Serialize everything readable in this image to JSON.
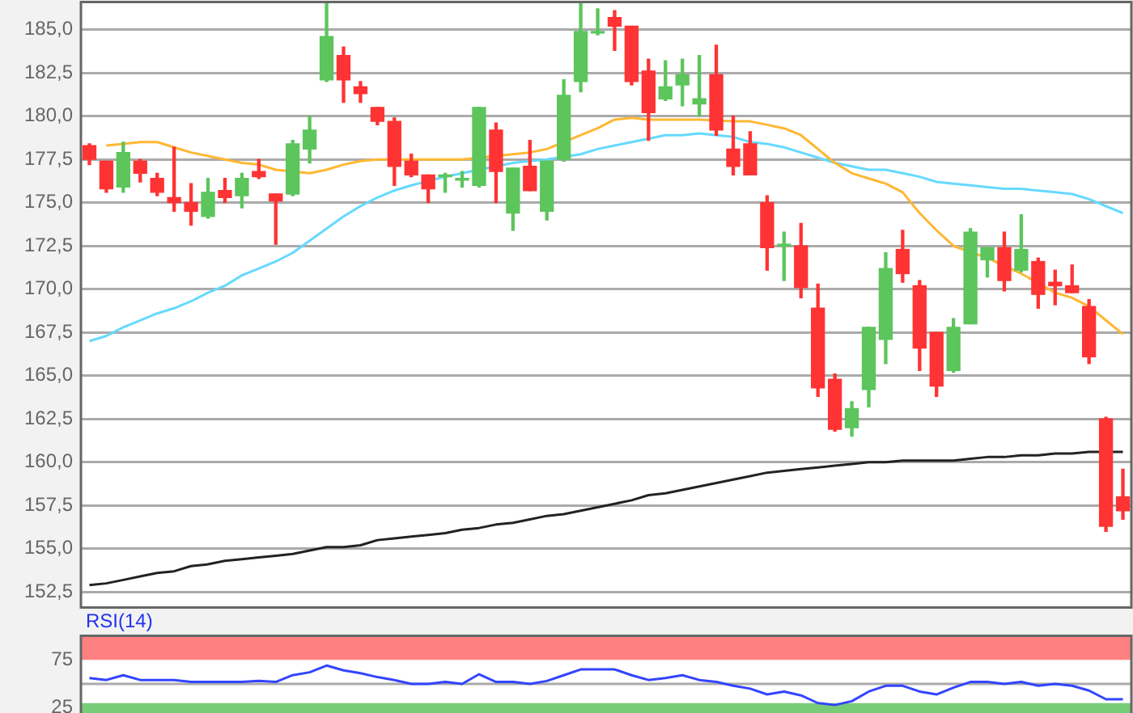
{
  "chart_data": [
    {
      "type": "candlestick",
      "categories": [
        null,
        null,
        null,
        null,
        null,
        null,
        null,
        null,
        null,
        null,
        null,
        null,
        null,
        null,
        null,
        null,
        null,
        null,
        null,
        null,
        null,
        null,
        null,
        null,
        null,
        null,
        null,
        null,
        null,
        null,
        null,
        null,
        null,
        null,
        null,
        null,
        null,
        null,
        null,
        null,
        null,
        null,
        null,
        null,
        null,
        null,
        null,
        null,
        null,
        null,
        null,
        null,
        null,
        null,
        null,
        null,
        null,
        null,
        null,
        null,
        null,
        null
      ],
      "ohlc": [
        [
          178.3,
          178.4,
          177.2,
          177.5
        ],
        [
          177.4,
          177.4,
          175.6,
          175.8
        ],
        [
          175.9,
          178.5,
          175.6,
          177.9
        ],
        [
          177.4,
          177.5,
          176.2,
          176.7
        ],
        [
          176.4,
          176.7,
          175.4,
          175.6
        ],
        [
          175.3,
          178.2,
          174.5,
          175.0
        ],
        [
          175.0,
          176.1,
          173.7,
          174.5
        ],
        [
          174.2,
          176.4,
          174.1,
          175.6
        ],
        [
          175.7,
          176.4,
          175.0,
          175.3
        ],
        [
          175.4,
          176.7,
          174.7,
          176.4
        ],
        [
          176.8,
          177.5,
          176.4,
          176.5
        ],
        [
          175.5,
          175.5,
          172.6,
          175.1
        ],
        [
          175.5,
          178.6,
          175.4,
          178.4
        ],
        [
          178.1,
          180.0,
          177.3,
          179.2
        ],
        [
          182.1,
          186.5,
          182.0,
          184.6
        ],
        [
          183.5,
          184.0,
          180.8,
          182.1
        ],
        [
          181.7,
          182.0,
          180.8,
          181.3
        ],
        [
          180.5,
          180.5,
          179.5,
          179.7
        ],
        [
          179.7,
          179.9,
          176.0,
          177.1
        ],
        [
          177.4,
          177.8,
          176.5,
          176.6
        ],
        [
          176.6,
          176.6,
          175.0,
          175.8
        ],
        [
          176.5,
          176.7,
          175.6,
          176.6
        ],
        [
          176.3,
          176.8,
          175.9,
          176.4
        ],
        [
          176.0,
          180.5,
          175.9,
          180.5
        ],
        [
          179.2,
          179.6,
          175.0,
          176.8
        ],
        [
          174.4,
          177.0,
          173.4,
          177.0
        ],
        [
          177.1,
          178.6,
          175.7,
          175.7
        ],
        [
          174.5,
          177.4,
          174.0,
          177.4
        ],
        [
          177.5,
          182.1,
          177.4,
          181.2
        ],
        [
          182.0,
          186.5,
          181.4,
          184.9
        ],
        [
          184.8,
          186.2,
          184.7,
          184.9
        ],
        [
          185.7,
          186.1,
          183.8,
          185.2
        ],
        [
          185.2,
          185.2,
          181.8,
          182.0
        ],
        [
          182.6,
          183.3,
          178.6,
          180.2
        ],
        [
          181.0,
          183.2,
          180.9,
          181.7
        ],
        [
          181.8,
          183.3,
          180.6,
          182.4
        ],
        [
          180.7,
          183.5,
          180.0,
          181.0
        ],
        [
          182.4,
          184.1,
          178.9,
          179.2
        ],
        [
          178.1,
          180.0,
          176.6,
          177.1
        ],
        [
          178.4,
          179.1,
          176.6,
          176.6
        ],
        [
          175.0,
          175.4,
          171.1,
          172.4
        ],
        [
          172.5,
          173.3,
          170.5,
          172.6
        ],
        [
          172.5,
          173.8,
          169.5,
          170.1
        ],
        [
          168.9,
          170.3,
          163.8,
          164.3
        ],
        [
          164.8,
          165.1,
          161.8,
          161.9
        ],
        [
          162.0,
          163.5,
          161.5,
          163.1
        ],
        [
          164.2,
          167.8,
          163.2,
          167.8
        ],
        [
          167.1,
          172.1,
          165.7,
          171.2
        ],
        [
          172.3,
          173.4,
          170.4,
          170.9
        ],
        [
          170.2,
          170.5,
          165.3,
          166.6
        ],
        [
          167.5,
          167.5,
          163.8,
          164.4
        ],
        [
          165.3,
          168.3,
          165.2,
          167.8
        ],
        [
          168.0,
          173.5,
          168.0,
          173.3
        ],
        [
          171.7,
          172.4,
          170.7,
          172.4
        ],
        [
          172.4,
          173.3,
          169.9,
          170.5
        ],
        [
          171.1,
          174.3,
          171.0,
          172.3
        ],
        [
          171.6,
          171.8,
          168.9,
          169.7
        ],
        [
          170.4,
          171.1,
          169.1,
          170.2
        ],
        [
          170.2,
          171.4,
          169.8,
          169.8
        ],
        [
          169.0,
          169.4,
          165.7,
          166.1
        ],
        [
          162.5,
          162.6,
          156.0,
          156.3
        ],
        [
          158.0,
          159.6,
          156.7,
          157.2
        ]
      ],
      "colors": [
        "#ff3333",
        "#ff3333",
        "#5cc55c",
        "#ff3333",
        "#ff3333",
        "#ff3333",
        "#ff3333",
        "#5cc55c",
        "#ff3333",
        "#5cc55c",
        "#ff3333",
        "#ff3333",
        "#5cc55c",
        "#5cc55c",
        "#5cc55c",
        "#ff3333",
        "#ff3333",
        "#ff3333",
        "#ff3333",
        "#ff3333",
        "#ff3333",
        "#5cc55c",
        "#5cc55c",
        "#5cc55c",
        "#ff3333",
        "#5cc55c",
        "#ff3333",
        "#5cc55c",
        "#5cc55c",
        "#5cc55c",
        "#5cc55c",
        "#ff3333",
        "#ff3333",
        "#ff3333",
        "#5cc55c",
        "#5cc55c",
        "#5cc55c",
        "#ff3333",
        "#ff3333",
        "#ff3333",
        "#ff3333",
        "#5cc55c",
        "#ff3333",
        "#ff3333",
        "#ff3333",
        "#5cc55c",
        "#5cc55c",
        "#5cc55c",
        "#ff3333",
        "#ff3333",
        "#ff3333",
        "#5cc55c",
        "#5cc55c",
        "#5cc55c",
        "#ff3333",
        "#5cc55c",
        "#ff3333",
        "#ff3333",
        "#ff3333",
        "#ff3333",
        "#ff3333",
        "#ff3333"
      ],
      "series": [
        {
          "type": "line",
          "color": "#ffb733",
          "values": [
            null,
            178.3,
            178.4,
            178.5,
            178.5,
            178.2,
            177.9,
            177.7,
            177.5,
            177.3,
            177.2,
            176.9,
            null,
            176.7,
            176.9,
            177.2,
            177.4,
            177.5,
            null,
            177.5,
            177.5,
            177.5,
            177.5,
            null,
            null,
            177.8,
            177.9,
            178.1,
            null,
            178.9,
            179.3,
            179.8,
            179.9,
            179.8,
            179.8,
            179.8,
            179.8,
            null,
            179.7,
            179.7,
            179.5,
            179.3,
            178.9,
            178.1,
            177.3,
            176.7,
            176.4,
            176.1,
            175.6,
            174.4,
            173.4,
            172.5,
            null,
            171.8,
            null,
            170.9,
            null,
            169.8,
            169.5,
            169.0,
            168.2,
            167.4
          ]
        },
        {
          "type": "line",
          "color": "#66d9ff",
          "values": [
            167.0,
            167.3,
            167.8,
            168.2,
            168.6,
            168.9,
            169.3,
            169.8,
            170.2,
            170.8,
            171.2,
            171.6,
            172.1,
            172.8,
            173.5,
            174.2,
            174.8,
            175.3,
            175.7,
            176.0,
            null,
            176.5,
            176.7,
            null,
            null,
            177.3,
            177.4,
            177.5,
            null,
            177.8,
            178.1,
            178.3,
            178.5,
            178.7,
            178.9,
            178.9,
            179.0,
            178.9,
            178.8,
            178.5,
            178.4,
            178.2,
            177.9,
            177.6,
            177.3,
            177.1,
            176.9,
            176.9,
            176.7,
            176.5,
            176.2,
            176.1,
            176.0,
            175.9,
            175.8,
            175.8,
            175.7,
            175.6,
            175.5,
            175.2,
            174.8,
            174.4
          ]
        },
        {
          "type": "line",
          "color": "#222222",
          "values": [
            152.9,
            153.0,
            153.2,
            153.4,
            153.6,
            153.7,
            154.0,
            154.1,
            154.3,
            154.4,
            154.5,
            154.6,
            154.7,
            154.9,
            155.1,
            155.1,
            155.2,
            155.5,
            155.6,
            155.7,
            155.8,
            155.9,
            156.1,
            156.2,
            156.4,
            156.5,
            156.7,
            156.9,
            157.0,
            157.2,
            157.4,
            157.6,
            157.8,
            158.1,
            158.2,
            158.4,
            158.6,
            158.8,
            159.0,
            159.2,
            159.4,
            159.5,
            159.6,
            159.7,
            159.8,
            159.9,
            160.0,
            160.0,
            160.1,
            160.1,
            160.1,
            160.1,
            160.2,
            160.3,
            160.3,
            160.4,
            160.4,
            160.5,
            160.5,
            160.6,
            null,
            160.6
          ]
        }
      ],
      "ylim": [
        151.6,
        186.6
      ],
      "yticks": [
        {
          "value": 152.5,
          "label": "152,5"
        },
        {
          "value": 155,
          "label": "155,0"
        },
        {
          "value": 157.5,
          "label": "157,5"
        },
        {
          "value": 160,
          "label": "160,0"
        },
        {
          "value": 162.5,
          "label": "162,5"
        },
        {
          "value": 165,
          "label": "165,0"
        },
        {
          "value": 167.5,
          "label": "167,5"
        },
        {
          "value": 170,
          "label": "170,0"
        },
        {
          "value": 172.5,
          "label": "172,5"
        },
        {
          "value": 175,
          "label": "175,0"
        },
        {
          "value": 177.5,
          "label": "177,5"
        },
        {
          "value": 180,
          "label": "180,0"
        },
        {
          "value": 182.5,
          "label": "182,5"
        },
        {
          "value": 185,
          "label": "185,0"
        }
      ],
      "grid": "y",
      "tick_labels": "y",
      "legend": false
    },
    {
      "type": "line",
      "title": "RSI(14)",
      "categories": [
        null,
        null,
        null,
        null,
        null,
        null,
        null,
        null,
        null,
        null,
        null,
        null,
        null,
        null,
        null,
        null,
        null,
        null,
        null,
        null,
        null,
        null,
        null,
        null,
        null,
        null,
        null,
        null,
        null,
        null,
        null,
        null,
        null,
        null,
        null,
        null,
        null,
        null,
        null,
        null,
        null,
        null,
        null,
        null,
        null,
        null,
        null,
        null,
        null,
        null,
        null,
        null,
        null,
        null,
        null,
        null,
        null,
        null,
        null,
        null,
        null,
        null
      ],
      "series": [
        {
          "color": "#3344ff",
          "values": [
            56,
            54,
            59,
            54,
            54,
            54,
            52,
            52,
            52,
            52,
            53,
            52,
            59,
            62,
            69,
            64,
            61,
            57,
            54,
            50,
            50,
            52,
            50,
            60,
            52,
            52,
            50,
            53,
            59,
            65,
            65,
            65,
            59,
            54,
            56,
            59,
            54,
            52,
            48,
            45,
            39,
            42,
            38,
            30,
            28,
            32,
            42,
            48,
            48,
            42,
            39,
            46,
            52,
            52,
            50,
            52,
            48,
            50,
            48,
            43,
            34,
            34
          ]
        }
      ],
      "ylim": [
        15,
        100
      ],
      "yticks": [
        25,
        75
      ],
      "bands": [
        {
          "axis": "y",
          "from": 75,
          "to": 100,
          "color": "#ff8080"
        },
        {
          "axis": "y",
          "from": 15,
          "to": 30,
          "color": "#77cc77"
        }
      ],
      "ref_lines": [
        {
          "axis": "y",
          "value": 50,
          "color": "#aaaaaa"
        }
      ],
      "grid": false,
      "tick_labels": "y",
      "legend": false
    }
  ]
}
